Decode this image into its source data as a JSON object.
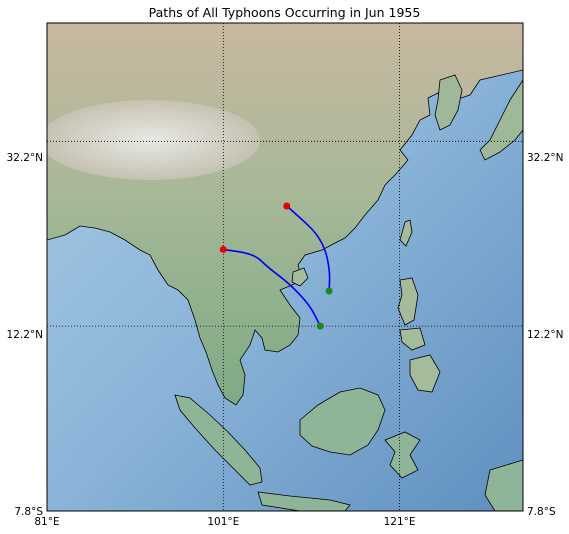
{
  "title": "Paths of All Typhoons Occurring in Jun 1955",
  "lon_labels": [
    "81°E",
    "101°E",
    "121°E"
  ],
  "lat_labels_left": [
    "32.2°N",
    "12.2°N",
    "7.8°S"
  ],
  "lat_labels_right": [
    "32.2°N",
    "12.2°N",
    "7.8°S"
  ],
  "colors": {
    "track": "#0000ff",
    "start_marker": "#1a8a1a",
    "end_marker": "#e60000",
    "ocean": "#8fb8dc",
    "land": "#8fb598"
  },
  "chart_data": {
    "type": "map",
    "extent": {
      "lon": [
        81,
        135
      ],
      "lat": [
        -7.8,
        45
      ]
    },
    "graticule": {
      "lons": [
        81,
        101,
        121
      ],
      "lats": [
        32.2,
        12.2,
        -7.8
      ]
    },
    "tracks": [
      {
        "start": [
          113.0,
          16.0
        ],
        "end": [
          108.2,
          25.2
        ],
        "points": [
          [
            113.0,
            16.0
          ],
          [
            113.1,
            18.0
          ],
          [
            112.6,
            20.5
          ],
          [
            111.5,
            22.3
          ],
          [
            110.2,
            23.5
          ],
          [
            108.2,
            25.2
          ]
        ]
      },
      {
        "start": [
          112.0,
          12.2
        ],
        "end": [
          101.0,
          20.5
        ],
        "points": [
          [
            112.0,
            12.2
          ],
          [
            110.8,
            14.5
          ],
          [
            108.5,
            16.8
          ],
          [
            106.0,
            18.6
          ],
          [
            104.5,
            20.0
          ],
          [
            101.0,
            20.5
          ]
        ]
      }
    ]
  }
}
